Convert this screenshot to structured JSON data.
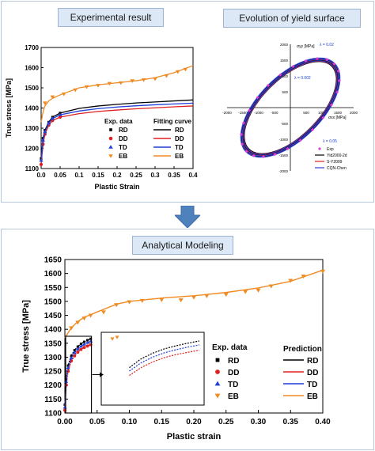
{
  "colors": {
    "panel_border": "#b7c7dc",
    "label_bg": "#dce8f5",
    "arrow": "#4f81bd",
    "RD": "#000000",
    "DD": "#e02020",
    "TD": "#1f3fd8",
    "EB": "#f08a22"
  },
  "headers": {
    "experimental": "Experimental result",
    "yield_surface": "Evolution of yield surface",
    "analytical": "Analytical Modeling"
  },
  "chart_data": [
    {
      "type": "line",
      "name": "experimental-result",
      "xlabel": "Plastic Strain",
      "ylabel": "True stress [MPa]",
      "xlim": [
        0,
        0.4
      ],
      "ylim": [
        1100,
        1700
      ],
      "xticks": [
        "0.0",
        "0.05",
        "0.1",
        "0.15",
        "0.2",
        "0.25",
        "0.3",
        "0.35",
        "0.4"
      ],
      "yticks": [
        "1100",
        "1200",
        "1300",
        "1400",
        "1500",
        "1600",
        "1700"
      ],
      "legend": {
        "data_title": "Exp. data",
        "fit_title": "Fitting curve",
        "entries": [
          "RD",
          "DD",
          "TD",
          "EB"
        ],
        "position": "bottom-right"
      },
      "series": [
        {
          "name": "RD",
          "x": [
            0,
            0.005,
            0.01,
            0.02,
            0.03,
            0.05,
            0.1,
            0.15,
            0.2,
            0.25,
            0.3,
            0.35,
            0.4
          ],
          "y": [
            1150,
            1250,
            1290,
            1330,
            1355,
            1375,
            1398,
            1410,
            1418,
            1425,
            1430,
            1435,
            1440
          ]
        },
        {
          "name": "DD",
          "x": [
            0,
            0.005,
            0.01,
            0.02,
            0.03,
            0.05,
            0.1,
            0.15,
            0.2,
            0.25,
            0.3,
            0.35,
            0.4
          ],
          "y": [
            1120,
            1220,
            1270,
            1315,
            1338,
            1355,
            1372,
            1383,
            1390,
            1396,
            1401,
            1406,
            1410
          ]
        },
        {
          "name": "TD",
          "x": [
            0,
            0.005,
            0.01,
            0.02,
            0.03,
            0.05,
            0.1,
            0.15,
            0.2,
            0.25,
            0.3,
            0.35,
            0.4
          ],
          "y": [
            1140,
            1240,
            1282,
            1325,
            1348,
            1366,
            1385,
            1397,
            1405,
            1411,
            1416,
            1420,
            1424
          ]
        },
        {
          "name": "EB",
          "x": [
            0,
            0.005,
            0.01,
            0.02,
            0.03,
            0.05,
            0.1,
            0.15,
            0.2,
            0.25,
            0.3,
            0.35,
            0.4
          ],
          "y": [
            1330,
            1380,
            1410,
            1435,
            1448,
            1465,
            1500,
            1515,
            1525,
            1535,
            1550,
            1575,
            1610
          ]
        }
      ],
      "markers": {
        "EB": {
          "x": [
            0.01,
            0.03,
            0.06,
            0.09,
            0.12,
            0.15,
            0.18,
            0.21,
            0.24,
            0.27,
            0.3,
            0.33,
            0.36,
            0.38
          ],
          "y": [
            1425,
            1455,
            1470,
            1490,
            1505,
            1512,
            1522,
            1525,
            1535,
            1540,
            1545,
            1560,
            1580,
            1592
          ]
        }
      }
    },
    {
      "type": "scatter",
      "name": "evolution-of-yield-surface",
      "xlabel": "σxx [MPa]",
      "ylabel": "σyy [MPa]",
      "xlim": [
        -2000,
        2000
      ],
      "ylim": [
        -2000,
        2000
      ],
      "xticks": [
        "-2000",
        "-1500",
        "-1000",
        "-500",
        "500",
        "1000",
        "1500",
        "2000"
      ],
      "yticks": [
        "2000",
        "1500",
        "1000",
        "500",
        "-500",
        "-1000",
        "-1500",
        "-2000"
      ],
      "annotations": [
        "λ = 0.02",
        "λ = 0.002",
        "λ = 0.05"
      ],
      "legend": {
        "entries": [
          "Exp",
          "Yld2000-2d",
          "S-Y2009",
          "CQN-Chen"
        ],
        "position": "bottom-right"
      },
      "series": [
        {
          "name": "Yld2000-2d",
          "ellipses": [
            {
              "a": 1850,
              "b": 900
            },
            {
              "a": 1900,
              "b": 940
            },
            {
              "a": 1950,
              "b": 980
            }
          ]
        },
        {
          "name": "S-Y2009",
          "ellipses": [
            {
              "a": 1870,
              "b": 910
            },
            {
              "a": 1925,
              "b": 960
            }
          ]
        },
        {
          "name": "CQN-Chen",
          "ellipses": [
            {
              "a": 1880,
              "b": 920
            },
            {
              "a": 1935,
              "b": 965
            },
            {
              "a": 1980,
              "b": 1000
            }
          ]
        }
      ],
      "angle_deg": 45
    },
    {
      "type": "line",
      "name": "analytical-modeling",
      "xlabel": "Plastic strain",
      "ylabel": "True stress [MPa]",
      "xlim": [
        0,
        0.4
      ],
      "ylim": [
        1100,
        1650
      ],
      "xticks": [
        "0.00",
        "0.05",
        "0.10",
        "0.15",
        "0.20",
        "0.25",
        "0.30",
        "0.35",
        "0.40"
      ],
      "yticks": [
        "1100",
        "1150",
        "1200",
        "1250",
        "1300",
        "1350",
        "1400",
        "1450",
        "1500",
        "1550",
        "1600",
        "1650"
      ],
      "legend": {
        "data_title": "Exp. data",
        "pred_title": "Prediction",
        "entries": [
          "RD",
          "DD",
          "TD",
          "EB"
        ],
        "position": "right"
      },
      "series": [
        {
          "name": "RD",
          "x": [
            0,
            0.002,
            0.005,
            0.01,
            0.015,
            0.02,
            0.025,
            0.03,
            0.035,
            0.04
          ],
          "y": [
            1130,
            1220,
            1270,
            1305,
            1325,
            1338,
            1348,
            1355,
            1361,
            1366
          ]
        },
        {
          "name": "DD",
          "x": [
            0,
            0.002,
            0.005,
            0.01,
            0.015,
            0.02,
            0.025,
            0.03,
            0.035,
            0.04
          ],
          "y": [
            1110,
            1200,
            1250,
            1287,
            1305,
            1318,
            1328,
            1335,
            1340,
            1345
          ]
        },
        {
          "name": "TD",
          "x": [
            0,
            0.002,
            0.005,
            0.01,
            0.015,
            0.02,
            0.025,
            0.03,
            0.035,
            0.04
          ],
          "y": [
            1120,
            1212,
            1262,
            1297,
            1316,
            1329,
            1339,
            1346,
            1352,
            1357
          ]
        },
        {
          "name": "EB",
          "x": [
            0,
            0.01,
            0.02,
            0.03,
            0.05,
            0.08,
            0.1,
            0.15,
            0.2,
            0.25,
            0.3,
            0.35,
            0.4
          ],
          "y": [
            1370,
            1405,
            1428,
            1443,
            1462,
            1490,
            1500,
            1512,
            1520,
            1532,
            1548,
            1572,
            1612
          ]
        }
      ],
      "markers": {
        "EB": {
          "x": [
            0.01,
            0.02,
            0.03,
            0.04,
            0.06,
            0.08,
            0.1,
            0.12,
            0.15,
            0.18,
            0.2,
            0.22,
            0.25,
            0.28,
            0.3,
            0.32,
            0.35,
            0.37,
            0.4
          ],
          "y": [
            1405,
            1425,
            1440,
            1450,
            1462,
            1488,
            1498,
            1503,
            1506,
            1505,
            1515,
            1520,
            1525,
            1535,
            1540,
            1555,
            1575,
            1590,
            1608
          ]
        }
      }
    }
  ]
}
